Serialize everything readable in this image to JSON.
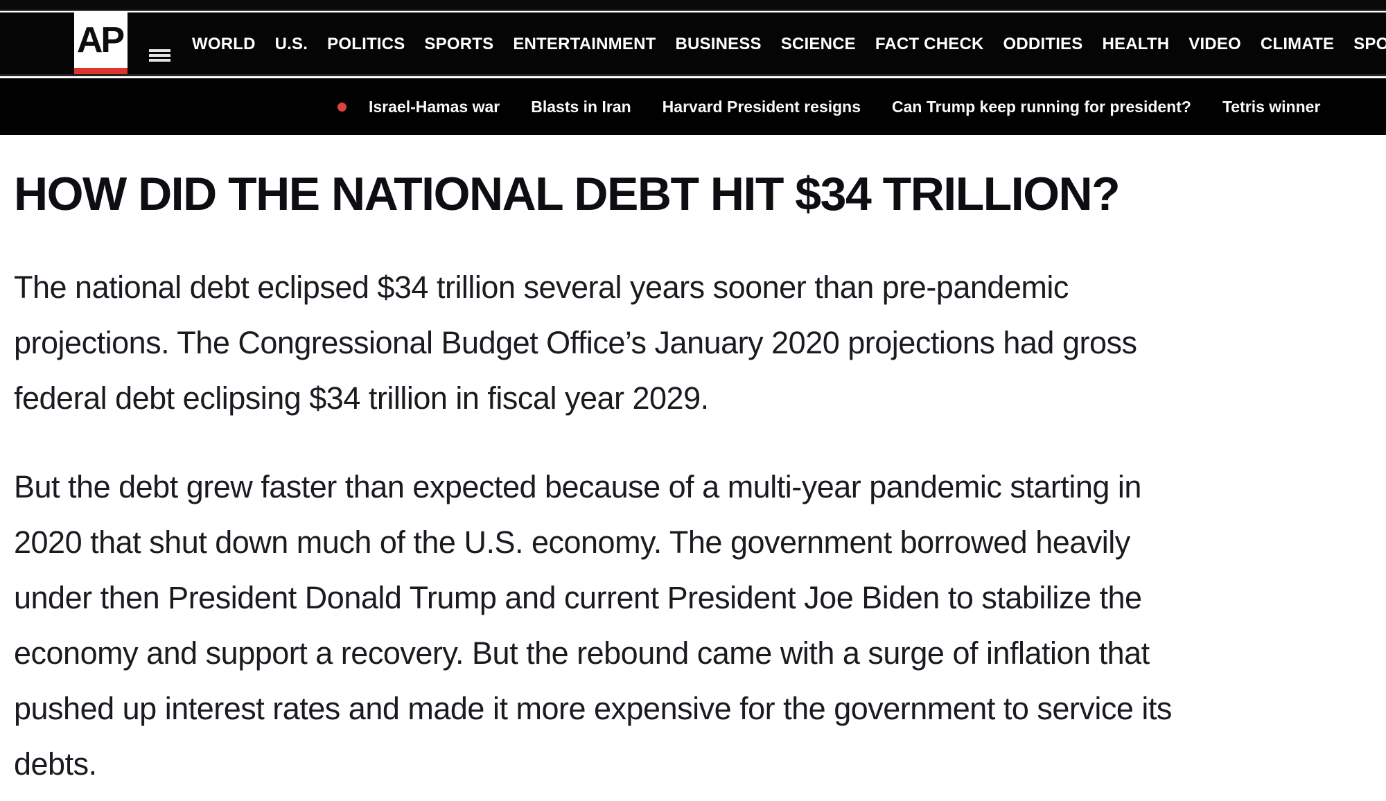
{
  "nav": {
    "logo_text": "AP",
    "items": [
      {
        "label": "WORLD"
      },
      {
        "label": "U.S."
      },
      {
        "label": "POLITICS"
      },
      {
        "label": "SPORTS"
      },
      {
        "label": "ENTERTAINMENT"
      },
      {
        "label": "BUSINESS"
      },
      {
        "label": "SCIENCE"
      },
      {
        "label": "FACT CHECK"
      },
      {
        "label": "ODDITIES"
      },
      {
        "label": "HEALTH"
      },
      {
        "label": "VIDEO"
      },
      {
        "label": "CLIMATE"
      },
      {
        "label": "SPOTLIGHT"
      }
    ]
  },
  "trending": {
    "items": [
      {
        "label": "Israel-Hamas war"
      },
      {
        "label": "Blasts in Iran"
      },
      {
        "label": "Harvard President resigns"
      },
      {
        "label": "Can Trump keep running for president?"
      },
      {
        "label": "Tetris winner"
      }
    ]
  },
  "article": {
    "heading": "HOW DID THE NATIONAL DEBT HIT $34 TRILLION?",
    "paragraph1": {
      "lines": [
        "The national debt eclipsed $34 trillion several years sooner than pre-pandemic",
        "projections. The Congressional Budget Office’s January 2020 projections had gross",
        "federal debt eclipsing $34 trillion in fiscal year 2029."
      ]
    },
    "paragraph2": {
      "lines": [
        "But the debt grew faster than expected because of a multi-year pandemic starting in",
        "2020 that shut down much of the U.S. economy. The government borrowed heavily",
        "under then President Donald Trump and current President Joe Biden to stabilize the",
        "economy and support a recovery. But the rebound came with a surge of inflation that",
        "pushed up interest rates and made it more expensive for the government to service its",
        "debts."
      ]
    }
  },
  "colors": {
    "nav_background": "#050505",
    "logo_red": "#e0352b",
    "trend_bullet_red": "#d9453c",
    "heading_text": "#0d0d12",
    "body_text": "#1a1a20"
  }
}
